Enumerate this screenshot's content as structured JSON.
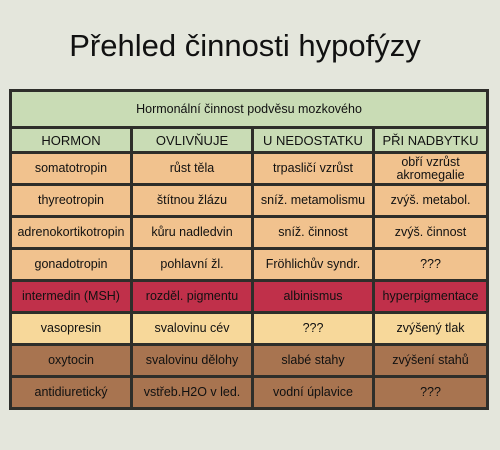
{
  "header": {
    "title": "Přehled činnosti hypofýzy"
  },
  "table": {
    "caption": "Hormonální činnost podvěsu mozkového",
    "columns": [
      "HORMON",
      "OVLIVŇUJE",
      "U NEDOSTATKU",
      "PŘI NADBYTKU"
    ],
    "rows": [
      [
        "somatotropin",
        "růst těla",
        "trpasličí vzrůst",
        "obří vzrůst akromegalie"
      ],
      [
        "thyreotropin",
        "štítnou žlázu",
        "sníž. metamolismu",
        "zvýš. metabol."
      ],
      [
        "adrenokortikotropin",
        "kůru nadledvin",
        "sníž. činnost",
        "zvýš. činnost"
      ],
      [
        "gonadotropin",
        "pohlavní žl.",
        "Fröhlichův syndr.",
        "???"
      ],
      [
        "intermedin (MSH)",
        "rozděl. pigmentu",
        "albinismus",
        "hyperpigmentace"
      ],
      [
        "vasopresin",
        "svalovinu cév",
        "???",
        "zvýšený tlak"
      ],
      [
        "oxytocin",
        "svalovinu dělohy",
        "slabé stahy",
        "zvýšení stahů"
      ],
      [
        "antidiuretický",
        "vstřeb.H2O v led.",
        "vodní úplavice",
        "???"
      ]
    ]
  }
}
